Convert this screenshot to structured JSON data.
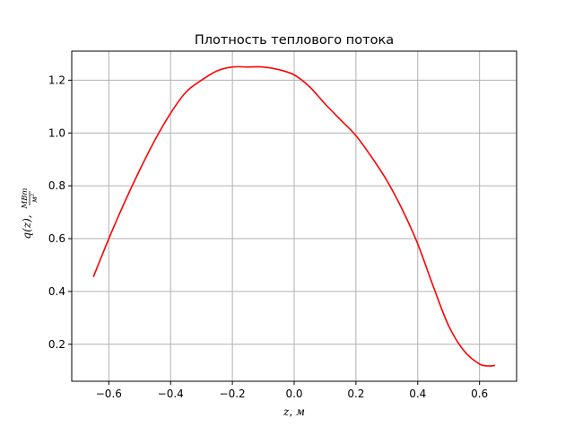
{
  "chart_data": {
    "type": "line",
    "title": "Плотность теплового потока",
    "xlabel": {
      "var": "z",
      "unit": "м"
    },
    "ylabel": {
      "func": "q(z),",
      "unit_num": "МВт",
      "unit_den": "м²"
    },
    "xlim": [
      -0.72,
      0.72
    ],
    "ylim": [
      0.06,
      1.31
    ],
    "xticks": [
      -0.6,
      -0.4,
      -0.2,
      0.0,
      0.2,
      0.4,
      0.6
    ],
    "xtick_labels": [
      "−0.6",
      "−0.4",
      "−0.2",
      "0.0",
      "0.2",
      "0.4",
      "0.6"
    ],
    "yticks": [
      0.2,
      0.4,
      0.6,
      0.8,
      1.0,
      1.2
    ],
    "ytick_labels": [
      "0.2",
      "0.4",
      "0.6",
      "0.8",
      "1.0",
      "1.2"
    ],
    "grid": true,
    "series": [
      {
        "name": "q(z)",
        "color": "#ff0000",
        "x": [
          -0.65,
          -0.6,
          -0.55,
          -0.5,
          -0.45,
          -0.4,
          -0.35,
          -0.3,
          -0.25,
          -0.2,
          -0.15,
          -0.1,
          -0.05,
          0.0,
          0.05,
          0.1,
          0.15,
          0.2,
          0.25,
          0.3,
          0.35,
          0.4,
          0.45,
          0.5,
          0.55,
          0.6,
          0.63,
          0.65
        ],
        "y": [
          0.455,
          0.6,
          0.735,
          0.86,
          0.975,
          1.075,
          1.155,
          1.2,
          1.235,
          1.25,
          1.25,
          1.25,
          1.24,
          1.22,
          1.175,
          1.11,
          1.05,
          0.99,
          0.91,
          0.82,
          0.71,
          0.58,
          0.42,
          0.27,
          0.175,
          0.125,
          0.118,
          0.12
        ]
      }
    ]
  }
}
